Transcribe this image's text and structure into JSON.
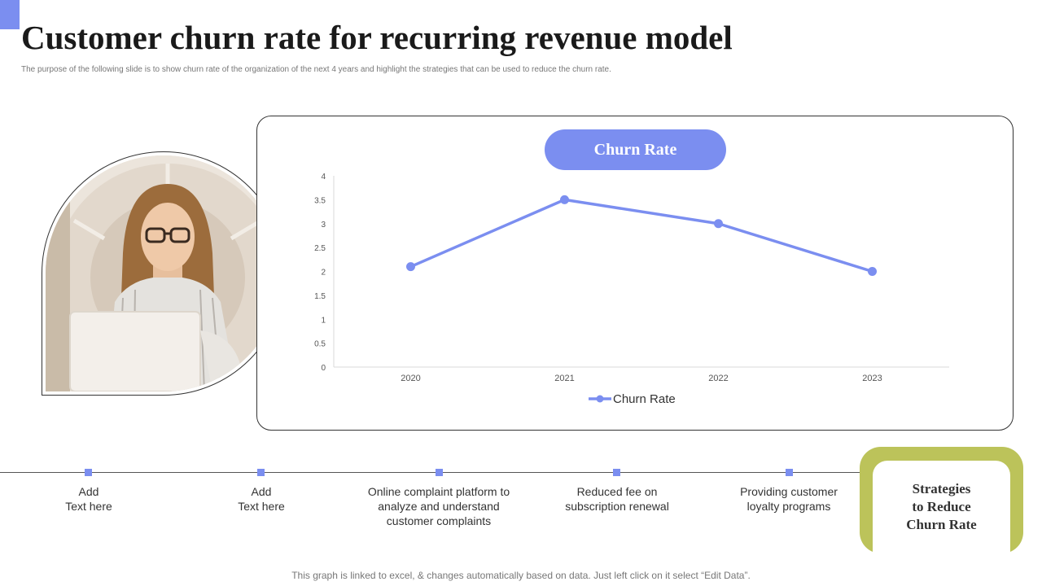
{
  "slide": {
    "title": "Customer churn rate for recurring revenue model",
    "subtitle": "The purpose of the following slide is to show churn rate of the organization of the next 4 years and highlight the strategies that can be used to reduce the churn rate.",
    "footer": "This graph is linked to excel, & changes automatically based on data. Just left click on it select “Edit Data”."
  },
  "colors": {
    "accent": "#7b8ef0",
    "olive": "#bcc35a"
  },
  "chart_heading": "Churn Rate",
  "chart_data": {
    "type": "line",
    "title": "Churn Rate",
    "categories": [
      "2020",
      "2021",
      "2022",
      "2023"
    ],
    "series": [
      {
        "name": "Churn Rate",
        "values": [
          2.1,
          3.5,
          3.0,
          2.0
        ]
      }
    ],
    "y_ticks": [
      "0",
      "0.5",
      "1",
      "1.5",
      "2",
      "2.5",
      "3",
      "3.5",
      "4"
    ],
    "ylim": [
      0,
      4
    ],
    "legend": "bottom",
    "grid": false
  },
  "timeline": [
    {
      "lines": [
        "Add",
        "Text here"
      ]
    },
    {
      "lines": [
        "Add",
        "Text here"
      ]
    },
    {
      "lines": [
        "Online complaint platform to",
        "analyze and understand",
        "customer complaints"
      ]
    },
    {
      "lines": [
        "Reduced fee on",
        "subscription renewal"
      ]
    },
    {
      "lines": [
        "Providing customer",
        "loyalty programs"
      ]
    }
  ],
  "strategies_box": {
    "lines": [
      "Strategies",
      "to Reduce",
      "Churn Rate"
    ]
  }
}
